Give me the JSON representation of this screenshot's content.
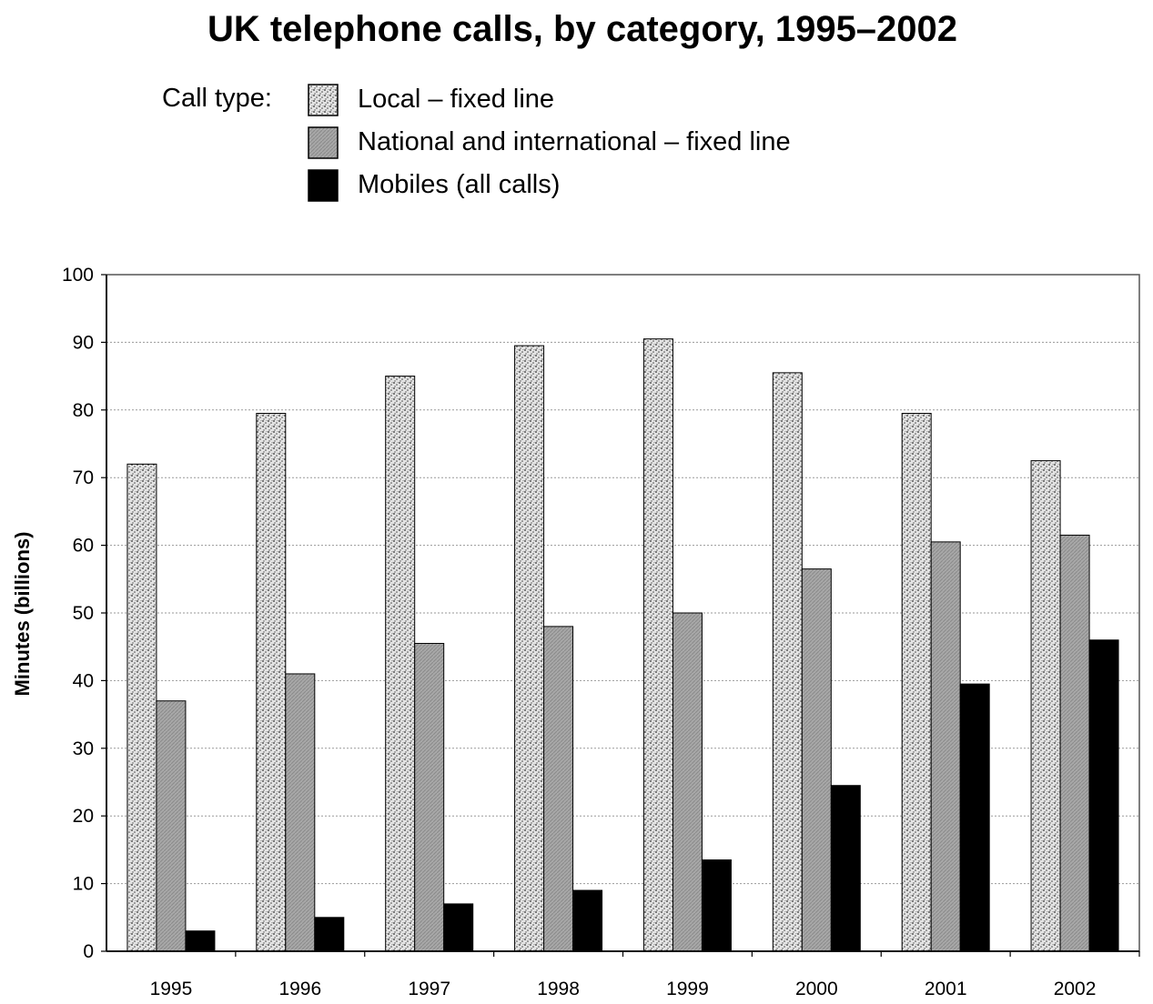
{
  "chart_data": {
    "type": "bar",
    "title": "UK telephone calls, by category, 1995–2002",
    "legend_heading": "Call type:",
    "xlabel": "",
    "ylabel": "Minutes (billions)",
    "ylim": [
      0,
      100
    ],
    "yticks": [
      0,
      10,
      20,
      30,
      40,
      50,
      60,
      70,
      80,
      90,
      100
    ],
    "grid": true,
    "categories": [
      "1995",
      "1996",
      "1997",
      "1998",
      "1999",
      "2000",
      "2001",
      "2002"
    ],
    "series": [
      {
        "name": "Local – fixed line",
        "pattern": "speckled",
        "color": "#d8d8d8",
        "values": [
          72,
          79.5,
          85,
          89.5,
          90.5,
          85.5,
          79.5,
          72.5
        ]
      },
      {
        "name": "National and international – fixed line",
        "pattern": "hatched-grey",
        "color": "#a3a3a3",
        "values": [
          37,
          41,
          45.5,
          48,
          50,
          56.5,
          60.5,
          61.5
        ]
      },
      {
        "name": "Mobiles (all calls)",
        "pattern": "solid",
        "color": "#000000",
        "values": [
          3,
          5,
          7,
          9,
          13.5,
          24.5,
          39.5,
          46
        ]
      }
    ]
  }
}
